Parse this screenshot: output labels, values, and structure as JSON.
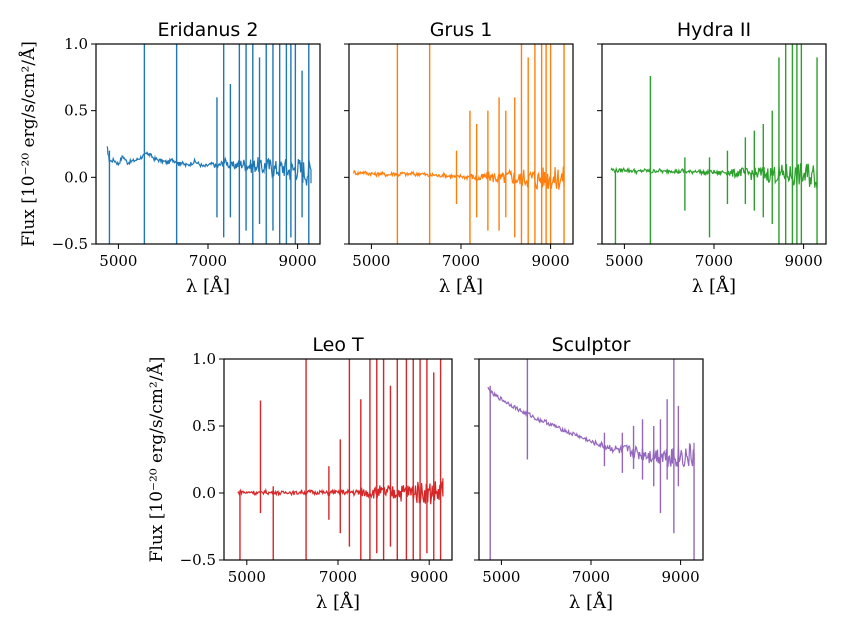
{
  "chart_data": [
    {
      "type": "line",
      "title": "Eridanus 2",
      "xlabel": "λ [Å]",
      "ylabel": "Flux [10⁻²⁰ erg/s/cm²/Å]",
      "xlim": [
        4500,
        9500
      ],
      "ylim": [
        -0.5,
        1.0
      ],
      "xticks": [
        "5000",
        "7000",
        "9000"
      ],
      "yticks": [
        "−0.5",
        "0.0",
        "0.5",
        "1.0"
      ],
      "color": "#1f77b4",
      "series": [
        {
          "x": [
            4750,
            4800,
            4900,
            5000,
            5100,
            5200,
            5300,
            5400,
            5500,
            5600,
            5650,
            5700,
            5800,
            5900,
            6000,
            6100,
            6200,
            6300,
            6350,
            6400,
            6500,
            6600,
            6700,
            6800,
            6900,
            7000,
            7100,
            7200,
            7300,
            7400,
            7500,
            7600,
            7700,
            7800,
            7900,
            8000,
            8100,
            8200,
            8300,
            8400,
            8500,
            8600,
            8700,
            8800,
            8900,
            9000,
            9100,
            9200,
            9300
          ],
          "y": [
            0.22,
            0.12,
            0.13,
            0.1,
            0.16,
            0.11,
            0.12,
            0.13,
            0.15,
            0.17,
            0.18,
            0.17,
            0.14,
            0.13,
            0.12,
            0.11,
            0.13,
            0.12,
            0.1,
            0.11,
            0.09,
            0.1,
            0.12,
            0.1,
            0.08,
            0.09,
            0.1,
            0.08,
            0.1,
            0.12,
            0.08,
            0.09,
            0.1,
            0.1,
            0.09,
            0.08,
            0.1,
            0.07,
            0.09,
            0.08,
            0.06,
            0.07,
            0.08,
            0.05,
            0.06,
            0.07,
            0.05,
            0.04,
            0.06
          ],
          "spikes": [
            {
              "x": 4800,
              "lo": -0.5,
              "hi": 0.2
            },
            {
              "x": 5580,
              "lo": -0.5,
              "hi": 1.0
            },
            {
              "x": 6300,
              "lo": -0.5,
              "hi": 1.0
            },
            {
              "x": 7200,
              "lo": -0.3,
              "hi": 0.6
            },
            {
              "x": 7350,
              "lo": -0.45,
              "hi": 1.0
            },
            {
              "x": 7500,
              "lo": -0.3,
              "hi": 0.7
            },
            {
              "x": 7700,
              "lo": -0.5,
              "hi": 1.0
            },
            {
              "x": 7850,
              "lo": -0.4,
              "hi": 1.0
            },
            {
              "x": 8000,
              "lo": -0.5,
              "hi": 1.0
            },
            {
              "x": 8150,
              "lo": -0.35,
              "hi": 0.9
            },
            {
              "x": 8300,
              "lo": -0.5,
              "hi": 1.0
            },
            {
              "x": 8450,
              "lo": -0.4,
              "hi": 1.0
            },
            {
              "x": 8600,
              "lo": -0.5,
              "hi": 1.0
            },
            {
              "x": 8750,
              "lo": -0.5,
              "hi": 1.0
            },
            {
              "x": 8850,
              "lo": -0.45,
              "hi": 1.0
            },
            {
              "x": 8950,
              "lo": -0.5,
              "hi": 1.0
            },
            {
              "x": 9100,
              "lo": -0.3,
              "hi": 0.8
            },
            {
              "x": 9250,
              "lo": -0.5,
              "hi": 1.0
            }
          ]
        }
      ]
    },
    {
      "type": "line",
      "title": "Grus 1",
      "xlabel": "λ [Å]",
      "xlim": [
        4500,
        9500
      ],
      "ylim": [
        -0.5,
        1.0
      ],
      "xticks": [
        "5000",
        "7000",
        "9000"
      ],
      "color": "#ff7f0e",
      "series": [
        {
          "x": [
            4600,
            4700,
            4800,
            4900,
            5000,
            5100,
            5200,
            5300,
            5400,
            5500,
            5600,
            5700,
            5800,
            5900,
            6000,
            6100,
            6200,
            6300,
            6400,
            6500,
            6600,
            6700,
            6800,
            6900,
            7000,
            7100,
            7200,
            7300,
            7400,
            7500,
            7600,
            7700,
            7800,
            7900,
            8000,
            8100,
            8200,
            8300,
            8400,
            8500,
            8600,
            8700,
            8800,
            8900,
            9000,
            9100,
            9200,
            9300
          ],
          "y": [
            0.04,
            0.03,
            0.04,
            0.03,
            0.03,
            0.02,
            0.03,
            0.02,
            0.02,
            0.03,
            0.02,
            0.03,
            0.02,
            0.03,
            0.02,
            0.03,
            0.02,
            0.01,
            0.02,
            0.01,
            0.02,
            0.01,
            0.01,
            0.0,
            0.01,
            0.0,
            0.01,
            0.0,
            -0.01,
            0.0,
            0.01,
            0.0,
            0.0,
            -0.01,
            0.0,
            0.01,
            0.0,
            -0.02,
            0.0,
            -0.01,
            0.0,
            -0.02,
            0.0,
            -0.01,
            0.0,
            -0.02,
            0.0,
            -0.01
          ],
          "spikes": [
            {
              "x": 5580,
              "lo": -0.5,
              "hi": 1.0
            },
            {
              "x": 6300,
              "lo": -0.5,
              "hi": 1.0
            },
            {
              "x": 6900,
              "lo": -0.2,
              "hi": 0.2
            },
            {
              "x": 7200,
              "lo": -0.5,
              "hi": 0.5
            },
            {
              "x": 7350,
              "lo": -0.3,
              "hi": 0.4
            },
            {
              "x": 7600,
              "lo": -0.4,
              "hi": 0.5
            },
            {
              "x": 7850,
              "lo": -0.4,
              "hi": 0.6
            },
            {
              "x": 8000,
              "lo": -0.3,
              "hi": 0.5
            },
            {
              "x": 8200,
              "lo": -0.45,
              "hi": 0.6
            },
            {
              "x": 8350,
              "lo": -0.5,
              "hi": 1.0
            },
            {
              "x": 8500,
              "lo": -0.5,
              "hi": 0.9
            },
            {
              "x": 8650,
              "lo": -0.5,
              "hi": 1.0
            },
            {
              "x": 8800,
              "lo": -0.5,
              "hi": 1.0
            },
            {
              "x": 8900,
              "lo": -0.5,
              "hi": 1.0
            },
            {
              "x": 9000,
              "lo": -0.5,
              "hi": 1.0
            },
            {
              "x": 9300,
              "lo": -0.5,
              "hi": 1.0
            }
          ]
        }
      ]
    },
    {
      "type": "line",
      "title": "Hydra II",
      "xlabel": "λ [Å]",
      "xlim": [
        4500,
        9500
      ],
      "ylim": [
        -0.5,
        1.0
      ],
      "xticks": [
        "5000",
        "7000",
        "9000"
      ],
      "color": "#2ca02c",
      "series": [
        {
          "x": [
            4700,
            4800,
            4900,
            5000,
            5100,
            5200,
            5300,
            5400,
            5500,
            5600,
            5700,
            5800,
            5900,
            6000,
            6100,
            6200,
            6300,
            6400,
            6500,
            6600,
            6700,
            6800,
            6900,
            7000,
            7100,
            7200,
            7300,
            7400,
            7500,
            7600,
            7700,
            7800,
            7900,
            8000,
            8100,
            8200,
            8300,
            8400,
            8500,
            8600,
            8700,
            8800,
            8900,
            9000,
            9100,
            9200,
            9300
          ],
          "y": [
            0.06,
            0.05,
            0.05,
            0.06,
            0.05,
            0.05,
            0.04,
            0.05,
            0.05,
            0.04,
            0.05,
            0.05,
            0.04,
            0.05,
            0.05,
            0.04,
            0.05,
            0.04,
            0.04,
            0.05,
            0.04,
            0.03,
            0.04,
            0.04,
            0.03,
            0.04,
            0.04,
            0.03,
            0.03,
            0.04,
            0.03,
            0.03,
            0.02,
            0.03,
            0.03,
            0.02,
            0.03,
            0.02,
            0.02,
            0.03,
            0.02,
            0.01,
            0.02,
            0.01,
            0.02,
            0.01,
            0.01
          ],
          "spikes": [
            {
              "x": 4800,
              "lo": -0.5,
              "hi": 0.05
            },
            {
              "x": 5580,
              "lo": -0.5,
              "hi": 0.76
            },
            {
              "x": 6350,
              "lo": -0.25,
              "hi": 0.15
            },
            {
              "x": 6900,
              "lo": -0.45,
              "hi": 0.15
            },
            {
              "x": 7300,
              "lo": -0.2,
              "hi": 0.2
            },
            {
              "x": 7700,
              "lo": -0.2,
              "hi": 0.3
            },
            {
              "x": 7900,
              "lo": -0.25,
              "hi": 0.35
            },
            {
              "x": 8100,
              "lo": -0.3,
              "hi": 0.4
            },
            {
              "x": 8300,
              "lo": -0.35,
              "hi": 0.5
            },
            {
              "x": 8450,
              "lo": -0.5,
              "hi": 0.9
            },
            {
              "x": 8600,
              "lo": -0.5,
              "hi": 1.0
            },
            {
              "x": 8750,
              "lo": -0.5,
              "hi": 1.0
            },
            {
              "x": 8850,
              "lo": -0.5,
              "hi": 1.0
            },
            {
              "x": 8950,
              "lo": -0.5,
              "hi": 1.0
            },
            {
              "x": 9300,
              "lo": -0.5,
              "hi": 0.9
            }
          ]
        }
      ]
    },
    {
      "type": "line",
      "title": "Leo T",
      "xlabel": "λ [Å]",
      "ylabel": "Flux [10⁻²⁰ erg/s/cm²/Å]",
      "xlim": [
        4500,
        9500
      ],
      "ylim": [
        -0.5,
        1.0
      ],
      "xticks": [
        "5000",
        "7000",
        "9000"
      ],
      "yticks": [
        "−0.5",
        "0.0",
        "0.5",
        "1.0"
      ],
      "color": "#d62728",
      "series": [
        {
          "x": [
            4800,
            4900,
            5000,
            5100,
            5200,
            5300,
            5400,
            5500,
            5600,
            5700,
            5800,
            5900,
            6000,
            6100,
            6200,
            6300,
            6400,
            6500,
            6600,
            6700,
            6800,
            6900,
            7000,
            7100,
            7200,
            7300,
            7400,
            7500,
            7600,
            7700,
            7800,
            7900,
            8000,
            8100,
            8200,
            8300,
            8400,
            8500,
            8600,
            8700,
            8800,
            8900,
            9000,
            9100,
            9200,
            9300
          ],
          "y": [
            0.0,
            0.01,
            0.0,
            0.01,
            0.0,
            0.0,
            0.01,
            0.0,
            0.01,
            0.0,
            0.0,
            0.01,
            0.0,
            0.0,
            0.01,
            0.0,
            0.01,
            0.0,
            0.01,
            0.0,
            0.0,
            0.01,
            0.0,
            0.01,
            0.0,
            0.01,
            0.0,
            0.01,
            0.0,
            0.01,
            0.0,
            0.01,
            0.0,
            0.01,
            0.0,
            0.01,
            0.0,
            0.01,
            0.0,
            0.01,
            0.0,
            0.01,
            0.0,
            0.01,
            0.0,
            0.01
          ],
          "spikes": [
            {
              "x": 4850,
              "lo": -0.5,
              "hi": 0.02
            },
            {
              "x": 5300,
              "lo": -0.15,
              "hi": 0.69
            },
            {
              "x": 5580,
              "lo": -0.5,
              "hi": 0.05
            },
            {
              "x": 6300,
              "lo": -0.5,
              "hi": 1.0
            },
            {
              "x": 6800,
              "lo": -0.2,
              "hi": 0.2
            },
            {
              "x": 7050,
              "lo": -0.3,
              "hi": 0.4
            },
            {
              "x": 7250,
              "lo": -0.4,
              "hi": 1.0
            },
            {
              "x": 7500,
              "lo": -0.5,
              "hi": 0.7
            },
            {
              "x": 7700,
              "lo": -0.5,
              "hi": 1.0
            },
            {
              "x": 7850,
              "lo": -0.45,
              "hi": 1.0
            },
            {
              "x": 8000,
              "lo": -0.5,
              "hi": 1.0
            },
            {
              "x": 8150,
              "lo": -0.4,
              "hi": 0.8
            },
            {
              "x": 8300,
              "lo": -0.5,
              "hi": 1.0
            },
            {
              "x": 8500,
              "lo": -0.5,
              "hi": 1.0
            },
            {
              "x": 8650,
              "lo": -0.5,
              "hi": 1.0
            },
            {
              "x": 8800,
              "lo": -0.5,
              "hi": 1.0
            },
            {
              "x": 8950,
              "lo": -0.45,
              "hi": 1.0
            },
            {
              "x": 9100,
              "lo": -0.5,
              "hi": 0.9
            },
            {
              "x": 9250,
              "lo": -0.5,
              "hi": 1.0
            }
          ]
        }
      ]
    },
    {
      "type": "line",
      "title": "Sculptor",
      "xlabel": "λ [Å]",
      "xlim": [
        4500,
        9500
      ],
      "ylim": [
        -0.5,
        1.0
      ],
      "xticks": [
        "5000",
        "7000",
        "9000"
      ],
      "color": "#9467bd",
      "series": [
        {
          "x": [
            4700,
            4800,
            4900,
            5000,
            5100,
            5200,
            5300,
            5400,
            5500,
            5600,
            5700,
            5800,
            5900,
            6000,
            6100,
            6200,
            6300,
            6400,
            6500,
            6600,
            6700,
            6800,
            6900,
            7000,
            7100,
            7200,
            7300,
            7400,
            7500,
            7600,
            7700,
            7800,
            7900,
            8000,
            8100,
            8200,
            8300,
            8400,
            8500,
            8600,
            8700,
            8800,
            8900,
            9000,
            9100,
            9200,
            9300
          ],
          "y": [
            0.78,
            0.74,
            0.72,
            0.7,
            0.68,
            0.66,
            0.64,
            0.62,
            0.6,
            0.59,
            0.57,
            0.55,
            0.54,
            0.53,
            0.51,
            0.5,
            0.48,
            0.47,
            0.45,
            0.44,
            0.43,
            0.41,
            0.4,
            0.38,
            0.37,
            0.36,
            0.35,
            0.34,
            0.33,
            0.32,
            0.31,
            0.32,
            0.3,
            0.3,
            0.29,
            0.3,
            0.28,
            0.29,
            0.28,
            0.29,
            0.27,
            0.28,
            0.27,
            0.28,
            0.27,
            0.27,
            0.28
          ],
          "spikes": [
            {
              "x": 4750,
              "lo": -0.5,
              "hi": 0.8
            },
            {
              "x": 5580,
              "lo": 0.25,
              "hi": 1.0
            },
            {
              "x": 7300,
              "lo": 0.2,
              "hi": 0.45
            },
            {
              "x": 7700,
              "lo": 0.15,
              "hi": 0.45
            },
            {
              "x": 7950,
              "lo": 0.18,
              "hi": 0.5
            },
            {
              "x": 8150,
              "lo": 0.1,
              "hi": 0.55
            },
            {
              "x": 8400,
              "lo": 0.05,
              "hi": 0.5
            },
            {
              "x": 8550,
              "lo": -0.15,
              "hi": 0.55
            },
            {
              "x": 8700,
              "lo": 0.1,
              "hi": 0.7
            },
            {
              "x": 8850,
              "lo": -0.3,
              "hi": 1.0
            },
            {
              "x": 8950,
              "lo": 0.05,
              "hi": 0.65
            },
            {
              "x": 9300,
              "lo": -0.5,
              "hi": 0.3
            }
          ]
        }
      ]
    }
  ]
}
